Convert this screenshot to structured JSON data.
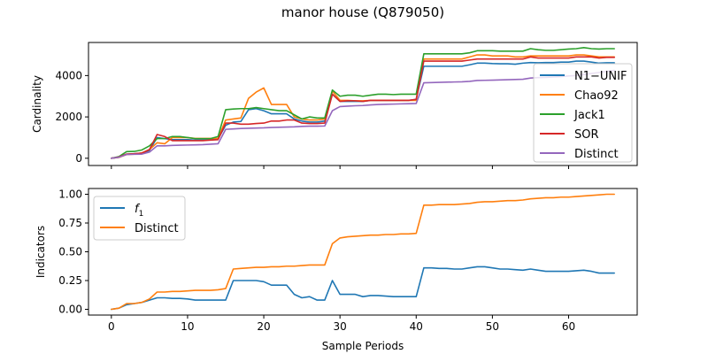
{
  "figure": {
    "title": "manor house (Q879050)"
  },
  "chart_data": [
    {
      "type": "line",
      "ylabel": "Cardinality",
      "xlabel": "",
      "xlim": [
        -3,
        69
      ],
      "ylim": [
        -350,
        5600
      ],
      "xticks": [
        0,
        10,
        20,
        30,
        40,
        50,
        60
      ],
      "yticks": [
        0,
        2000,
        4000
      ],
      "ytick_labels": [
        "0",
        "2000",
        "4000"
      ],
      "show_xtick_labels": false,
      "legend_position": "right",
      "x": [
        0,
        1,
        2,
        3,
        4,
        5,
        6,
        7,
        8,
        9,
        10,
        11,
        12,
        13,
        14,
        15,
        16,
        17,
        18,
        19,
        20,
        21,
        22,
        23,
        24,
        25,
        26,
        27,
        28,
        29,
        30,
        31,
        32,
        33,
        34,
        35,
        36,
        37,
        38,
        39,
        40,
        41,
        42,
        43,
        44,
        45,
        46,
        47,
        48,
        49,
        50,
        51,
        52,
        53,
        54,
        55,
        56,
        57,
        58,
        59,
        60,
        61,
        62,
        63,
        64,
        65,
        66
      ],
      "series": [
        {
          "name": "N1−UNIF",
          "color": "#1f77b4",
          "values": [
            0,
            50,
            200,
            220,
            230,
            380,
            1000,
            950,
            900,
            900,
            900,
            880,
            880,
            890,
            930,
            1600,
            1750,
            1780,
            2350,
            2400,
            2300,
            2150,
            2150,
            2150,
            1900,
            1800,
            1750,
            1750,
            1800,
            3100,
            2750,
            2750,
            2750,
            2750,
            2800,
            2800,
            2800,
            2800,
            2800,
            2800,
            2850,
            4450,
            4450,
            4450,
            4450,
            4450,
            4450,
            4520,
            4600,
            4600,
            4580,
            4570,
            4570,
            4550,
            4600,
            4630,
            4620,
            4630,
            4630,
            4650,
            4650,
            4700,
            4700,
            4650,
            4600,
            4620,
            4620
          ]
        },
        {
          "name": "Chao92",
          "color": "#ff7f0e",
          "values": [
            0,
            40,
            180,
            200,
            260,
            420,
            750,
            700,
            1000,
            1000,
            1000,
            960,
            960,
            960,
            960,
            1850,
            1900,
            1950,
            2900,
            3200,
            3400,
            2600,
            2600,
            2600,
            2000,
            1900,
            1850,
            1850,
            1900,
            3250,
            2800,
            2800,
            2780,
            2780,
            2800,
            2800,
            2800,
            2800,
            2800,
            2800,
            2800,
            4800,
            4800,
            4800,
            4800,
            4800,
            4800,
            4900,
            5000,
            5000,
            4950,
            4950,
            4950,
            4900,
            4900,
            4950,
            4950,
            4950,
            4950,
            4950,
            4950,
            5000,
            5000,
            4950,
            4900,
            4900,
            4900
          ]
        },
        {
          "name": "Jack1",
          "color": "#2ca02c",
          "values": [
            0,
            80,
            320,
            330,
            400,
            600,
            950,
            950,
            1050,
            1050,
            1000,
            950,
            950,
            950,
            1050,
            2350,
            2380,
            2400,
            2400,
            2450,
            2400,
            2350,
            2300,
            2300,
            2100,
            1900,
            2000,
            1950,
            1950,
            3300,
            3000,
            3050,
            3050,
            3000,
            3050,
            3100,
            3100,
            3080,
            3100,
            3100,
            3100,
            5050,
            5050,
            5050,
            5050,
            5050,
            5050,
            5100,
            5200,
            5200,
            5200,
            5180,
            5180,
            5180,
            5180,
            5300,
            5250,
            5220,
            5220,
            5250,
            5280,
            5300,
            5350,
            5300,
            5280,
            5300,
            5300
          ]
        },
        {
          "name": "SOR",
          "color": "#d62728",
          "values": [
            0,
            60,
            200,
            220,
            250,
            420,
            1150,
            1050,
            850,
            850,
            850,
            850,
            850,
            880,
            900,
            1700,
            1700,
            1650,
            1650,
            1680,
            1700,
            1800,
            1800,
            1850,
            1850,
            1700,
            1680,
            1680,
            1700,
            3100,
            2750,
            2780,
            2780,
            2750,
            2800,
            2800,
            2800,
            2800,
            2800,
            2800,
            2850,
            4700,
            4700,
            4700,
            4700,
            4700,
            4700,
            4750,
            4800,
            4800,
            4800,
            4800,
            4800,
            4800,
            4800,
            4900,
            4850,
            4850,
            4850,
            4850,
            4850,
            4900,
            4900,
            4900,
            4850,
            4880,
            4880
          ]
        },
        {
          "name": "Distinct",
          "color": "#9467bd",
          "values": [
            0,
            50,
            180,
            190,
            200,
            300,
            600,
            600,
            620,
            630,
            640,
            650,
            660,
            680,
            700,
            1400,
            1420,
            1440,
            1450,
            1460,
            1470,
            1490,
            1500,
            1510,
            1520,
            1540,
            1550,
            1550,
            1560,
            2300,
            2500,
            2520,
            2540,
            2550,
            2580,
            2600,
            2610,
            2620,
            2630,
            2640,
            2650,
            3650,
            3660,
            3670,
            3680,
            3690,
            3700,
            3720,
            3760,
            3770,
            3780,
            3790,
            3800,
            3810,
            3820,
            3880,
            3900,
            3910,
            3930,
            3950,
            3980,
            4000,
            4050,
            4100,
            4150,
            4200,
            4250
          ]
        }
      ]
    },
    {
      "type": "line",
      "ylabel": "Indicators",
      "xlabel": "Sample Periods",
      "xlim": [
        -3,
        69
      ],
      "ylim": [
        -0.05,
        1.05
      ],
      "xticks": [
        0,
        10,
        20,
        30,
        40,
        50,
        60
      ],
      "xtick_labels": [
        "0",
        "10",
        "20",
        "30",
        "40",
        "50",
        "60"
      ],
      "yticks": [
        0,
        0.25,
        0.5,
        0.75,
        1.0
      ],
      "ytick_labels": [
        "0.00",
        "0.25",
        "0.50",
        "0.75",
        "1.00"
      ],
      "legend_position": "upper left",
      "x": [
        0,
        1,
        2,
        3,
        4,
        5,
        6,
        7,
        8,
        9,
        10,
        11,
        12,
        13,
        14,
        15,
        16,
        17,
        18,
        19,
        20,
        21,
        22,
        23,
        24,
        25,
        26,
        27,
        28,
        29,
        30,
        31,
        32,
        33,
        34,
        35,
        36,
        37,
        38,
        39,
        40,
        41,
        42,
        43,
        44,
        45,
        46,
        47,
        48,
        49,
        50,
        51,
        52,
        53,
        54,
        55,
        56,
        57,
        58,
        59,
        60,
        61,
        62,
        63,
        64,
        65,
        66
      ],
      "series": [
        {
          "name": "f",
          "name_sub": "1",
          "color": "#1f77b4",
          "values": [
            0.0,
            0.01,
            0.04,
            0.05,
            0.06,
            0.08,
            0.1,
            0.1,
            0.095,
            0.095,
            0.09,
            0.08,
            0.08,
            0.08,
            0.08,
            0.08,
            0.25,
            0.25,
            0.25,
            0.25,
            0.24,
            0.21,
            0.21,
            0.21,
            0.13,
            0.1,
            0.11,
            0.08,
            0.08,
            0.25,
            0.13,
            0.13,
            0.13,
            0.11,
            0.12,
            0.12,
            0.115,
            0.11,
            0.11,
            0.11,
            0.11,
            0.36,
            0.36,
            0.355,
            0.355,
            0.35,
            0.35,
            0.36,
            0.37,
            0.37,
            0.36,
            0.35,
            0.35,
            0.345,
            0.34,
            0.35,
            0.34,
            0.33,
            0.33,
            0.33,
            0.33,
            0.335,
            0.34,
            0.33,
            0.315,
            0.315,
            0.315
          ]
        },
        {
          "name": "Distinct",
          "color": "#ff7f0e",
          "values": [
            0.0,
            0.01,
            0.05,
            0.05,
            0.06,
            0.09,
            0.15,
            0.15,
            0.155,
            0.155,
            0.16,
            0.165,
            0.165,
            0.165,
            0.17,
            0.18,
            0.35,
            0.355,
            0.36,
            0.365,
            0.365,
            0.37,
            0.37,
            0.375,
            0.375,
            0.38,
            0.385,
            0.385,
            0.385,
            0.57,
            0.62,
            0.63,
            0.635,
            0.64,
            0.645,
            0.645,
            0.65,
            0.65,
            0.655,
            0.655,
            0.66,
            0.905,
            0.905,
            0.91,
            0.91,
            0.91,
            0.915,
            0.92,
            0.93,
            0.935,
            0.935,
            0.94,
            0.945,
            0.945,
            0.95,
            0.96,
            0.965,
            0.97,
            0.97,
            0.975,
            0.975,
            0.98,
            0.985,
            0.99,
            0.995,
            1.0,
            1.0
          ]
        }
      ]
    }
  ]
}
